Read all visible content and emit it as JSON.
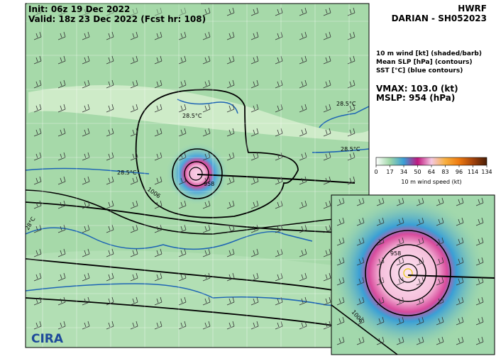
{
  "header": {
    "init": "Init:  06z 19 Dec 2022",
    "valid": "Valid: 18z 23 Dec 2022 (Fcst hr: 108)",
    "model": "HWRF",
    "storm": "DARIAN - SH052023"
  },
  "legend": {
    "lines": [
      "10 m wind [kt] (shaded/barb)",
      "Mean SLP [hPa] (contours)",
      "SST [°C] (blue contours)"
    ],
    "vmax": "VMAX: 103.0 (kt)",
    "mslp": "MSLP:  954 (hPa)"
  },
  "colorbar": {
    "ticks": [
      0,
      17,
      34,
      50,
      64,
      83,
      96,
      114,
      134
    ],
    "colors": [
      "#ffffff",
      "#9fd8a8",
      "#3a9fd6",
      "#c0187f",
      "#f4c8e2",
      "#f7b040",
      "#ee7a10",
      "#a4440c",
      "#4a1e06"
    ],
    "label": "10 m wind speed (kt)"
  },
  "map": {
    "sst_labels": [
      "28.5°C",
      "28.5°C",
      "28.5°C",
      "28.5°C",
      "28°C"
    ],
    "slp_labels": [
      "1006",
      "958",
      "1006"
    ],
    "logo": "CIRA"
  }
}
